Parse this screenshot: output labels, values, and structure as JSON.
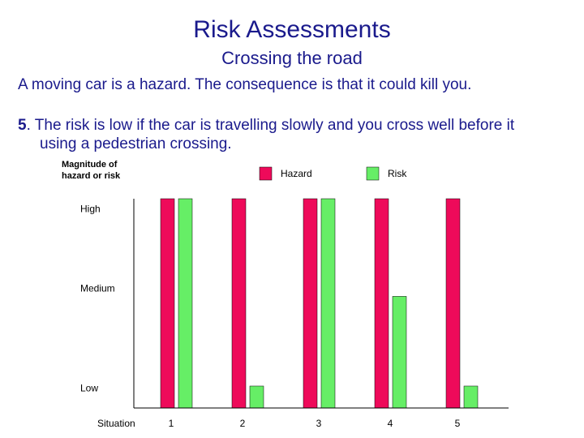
{
  "title": "Risk Assessments",
  "subtitle": "Crossing the road",
  "intro": "A moving car is a hazard.  The consequence is that it could kill you.",
  "point": {
    "number": "5",
    "text_line1": ".  The risk is low if the car is travelling slowly and you cross well before it",
    "text_line2": "using a pedestrian crossing."
  },
  "colors": {
    "text": "#1a1a8c",
    "hazard": "#ee0a5a",
    "risk": "#66ee66"
  },
  "chart_data": {
    "type": "bar",
    "ylabel": "Magnitude of hazard or risk",
    "xlabel": "Situation",
    "categories": [
      "1",
      "2",
      "3",
      "4",
      "5"
    ],
    "y_ticks": [
      {
        "label": "Low",
        "value": 0.1
      },
      {
        "label": "Medium",
        "value": 0.6
      },
      {
        "label": "High",
        "value": 1.0
      }
    ],
    "ylim": [
      0,
      1.05
    ],
    "legend_position": "top",
    "series": [
      {
        "name": "Hazard",
        "color": "#ee0a5a",
        "values": [
          1.05,
          1.05,
          1.05,
          1.05,
          1.05
        ]
      },
      {
        "name": "Risk",
        "color": "#66ee66",
        "values": [
          1.05,
          0.11,
          1.05,
          0.56,
          0.11
        ]
      }
    ]
  }
}
